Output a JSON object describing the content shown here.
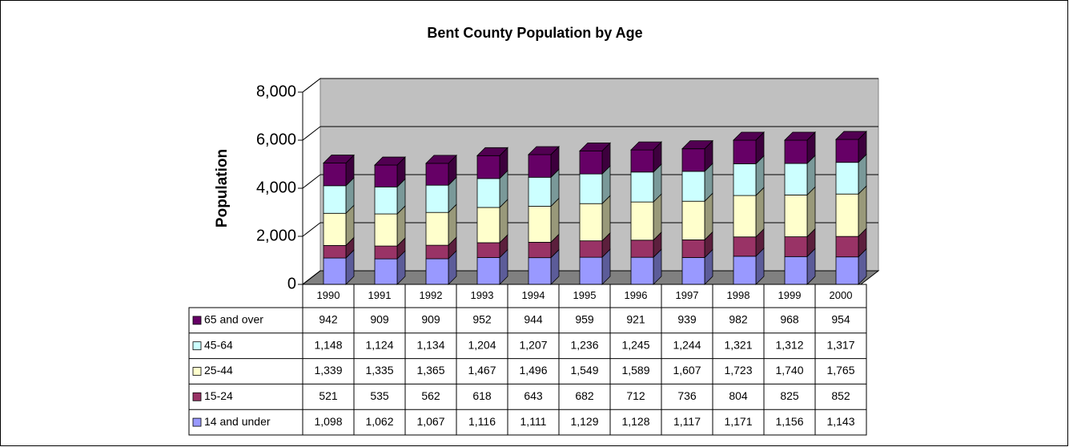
{
  "chart_data": {
    "type": "bar",
    "stacked": true,
    "title": "Bent County Population by Age",
    "y_label": "Population",
    "categories": [
      "1990",
      "1991",
      "1992",
      "1993",
      "1994",
      "1995",
      "1996",
      "1997",
      "1998",
      "1999",
      "2000"
    ],
    "series": [
      {
        "name": "14 and under",
        "color": "#9999ff",
        "values": [
          1098,
          1062,
          1067,
          1116,
          1111,
          1129,
          1128,
          1117,
          1171,
          1156,
          1143
        ],
        "value_labels": [
          "1,098",
          "1,062",
          "1,067",
          "1,116",
          "1,111",
          "1,129",
          "1,128",
          "1,117",
          "1,171",
          "1,156",
          "1,143"
        ]
      },
      {
        "name": "15-24",
        "color": "#993366",
        "values": [
          521,
          535,
          562,
          618,
          643,
          682,
          712,
          736,
          804,
          825,
          852
        ]
      },
      {
        "name": "25-44",
        "color": "#ffffcc",
        "values": [
          1339,
          1335,
          1365,
          1467,
          1496,
          1549,
          1589,
          1607,
          1723,
          1740,
          1765
        ],
        "value_labels": [
          "1,339",
          "1,335",
          "1,365",
          "1,467",
          "1,496",
          "1,549",
          "1,589",
          "1,607",
          "1,723",
          "1,740",
          "1,765"
        ]
      },
      {
        "name": "45-64",
        "color": "#ccffff",
        "values": [
          1148,
          1124,
          1134,
          1204,
          1207,
          1236,
          1245,
          1244,
          1321,
          1312,
          1317
        ],
        "value_labels": [
          "1,148",
          "1,124",
          "1,134",
          "1,204",
          "1,207",
          "1,236",
          "1,245",
          "1,244",
          "1,321",
          "1,312",
          "1,317"
        ]
      },
      {
        "name": "65 and over",
        "color": "#660066",
        "values": [
          942,
          909,
          909,
          952,
          944,
          959,
          921,
          939,
          982,
          968,
          954
        ]
      }
    ],
    "ylim": [
      0,
      8000
    ],
    "yticks": [
      0,
      {
        "value": 2000,
        "label": "2,000"
      },
      {
        "value": 4000,
        "label": "4,000"
      },
      {
        "value": 6000,
        "label": "6,000"
      },
      {
        "value": 8000,
        "label": "8,000"
      }
    ],
    "grid": true,
    "data_table": true
  }
}
